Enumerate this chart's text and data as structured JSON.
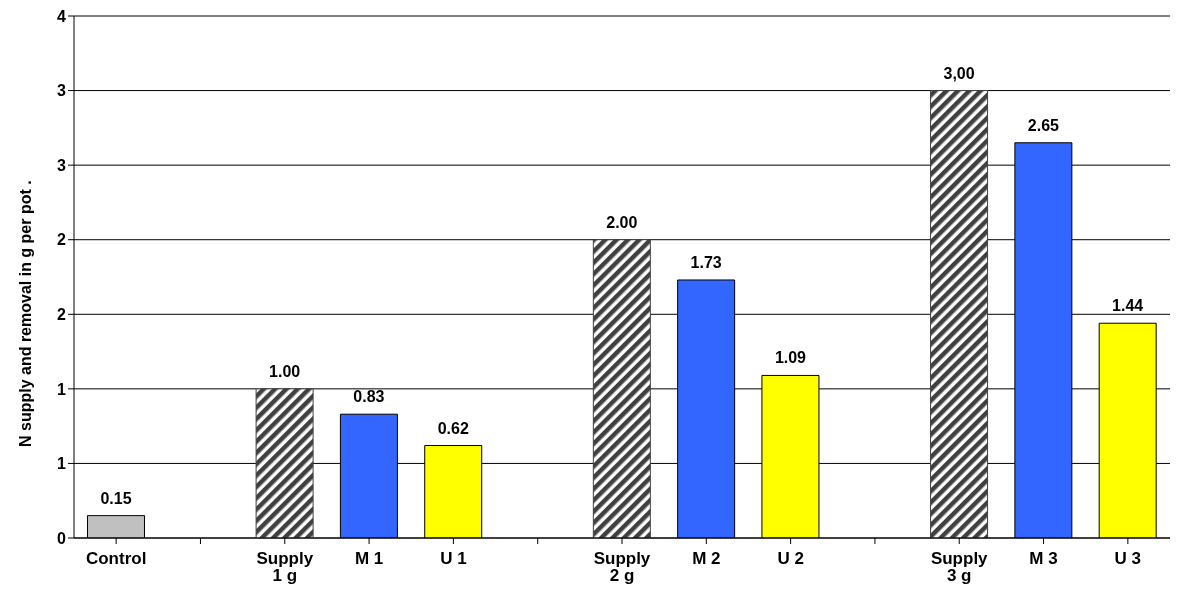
{
  "chart_data": {
    "type": "bar",
    "ylabel": "N supply and removal in g per pot     .",
    "categories": [
      "Control",
      null,
      "Supply 1 g",
      "M 1",
      "U 1",
      null,
      "Supply 2 g",
      "M 2",
      "U 2",
      null,
      "Supply 3 g",
      "M 3",
      "U 3"
    ],
    "values": [
      0.15,
      null,
      1.0,
      0.83,
      0.62,
      null,
      2.0,
      1.73,
      1.09,
      null,
      3.0,
      2.65,
      1.44
    ],
    "colors": [
      "#c0c0c0",
      null,
      "#404040",
      "#3366ff",
      "#ffff00",
      null,
      "#404040",
      "#3366ff",
      "#ffff00",
      null,
      "#404040",
      "#3366ff",
      "#ffff00"
    ],
    "value_labels": [
      "0.15",
      null,
      "1.00",
      "0.83",
      "0.62",
      null,
      "2.00",
      "1.73",
      "1.09",
      null,
      "3,00",
      "2.65",
      "1.44"
    ],
    "ylim": [
      0,
      3.5
    ],
    "yticks": [
      0,
      {
        "value": 0.5,
        "label": "1"
      },
      {
        "value": 1,
        "label": "1"
      },
      {
        "value": 1.5,
        "label": "2"
      },
      {
        "value": 2,
        "label": "2"
      },
      {
        "value": 2.5,
        "label": "3"
      },
      {
        "value": 3,
        "label": "3"
      },
      {
        "value": 3.5,
        "label": "4"
      }
    ],
    "grid": "y"
  }
}
